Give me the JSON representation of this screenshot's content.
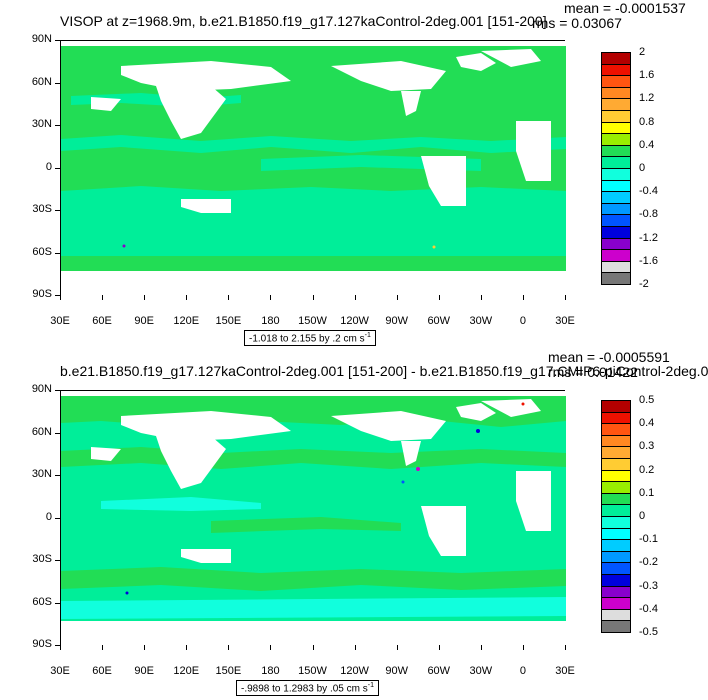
{
  "panels": [
    {
      "title": "VISOP at z=1968.9m, b.e21.B1850.f19_g17.127kaControl-2deg.001 [151-200]",
      "mean": "mean = -0.0001537",
      "rms": "rms = 0.03067",
      "range_text": "-1.018 to 2.155 by .2 cm s",
      "range_sup": "-1",
      "colorbar_labels": [
        "2",
        "1.6",
        "1.2",
        "0.8",
        "0.4",
        "0",
        "-0.4",
        "-0.8",
        "-1.2",
        "-1.6",
        "-2"
      ]
    },
    {
      "title": "b.e21.B1850.f19_g17.127kaControl-2deg.001 [151-200] - b.e21.B1850.f19_g17.CMIP6-piControl-2deg.0",
      "mean": "mean = -0.0005591",
      "rms": "rms = 0.01422",
      "range_text": "-.9898 to 1.2983 by .05 cm s",
      "range_sup": "-1",
      "colorbar_labels": [
        "0.5",
        "0.4",
        "0.3",
        "0.2",
        "0.1",
        "0",
        "-0.1",
        "-0.2",
        "-0.3",
        "-0.4",
        "-0.5"
      ]
    }
  ],
  "axes": {
    "y_ticks": [
      "90N",
      "60N",
      "30N",
      "0",
      "30S",
      "60S",
      "90S"
    ],
    "x_ticks": [
      "30E",
      "60E",
      "90E",
      "120E",
      "150E",
      "180",
      "150W",
      "120W",
      "90W",
      "60W",
      "30W",
      "0",
      "30E"
    ]
  },
  "colorbar_colors": [
    "#b30000",
    "#ee1100",
    "#ff5511",
    "#ff8822",
    "#ffaa33",
    "#ffcc33",
    "#ffff00",
    "#99ee00",
    "#22dd55",
    "#00ee99",
    "#11ffdd",
    "#00ffff",
    "#00ccff",
    "#0099ff",
    "#0055ff",
    "#0000dd",
    "#8800cc",
    "#cc00cc",
    "#dddddd",
    "#777777"
  ],
  "chart_data": [
    {
      "type": "heatmap",
      "title": "VISOP at z=1968.9m, b.e21.B1850.f19_g17.127kaControl-2deg.001 [151-200]",
      "xlabel": "",
      "ylabel": "",
      "x_range": [
        "30E",
        "30E"
      ],
      "y_range": [
        "90S",
        "90N"
      ],
      "color_levels": [
        2,
        1.6,
        1.2,
        0.8,
        0.4,
        0,
        -0.4,
        -0.8,
        -1.2,
        -1.6,
        -2
      ],
      "mean": -0.0001537,
      "rms": 0.03067,
      "data_min": -1.018,
      "data_max": 2.155,
      "contour_interval": 0.2,
      "units": "cm s-1"
    },
    {
      "type": "heatmap",
      "title": "b.e21.B1850.f19_g17.127kaControl-2deg.001 [151-200] - b.e21.B1850.f19_g17.CMIP6-piControl-2deg.0",
      "xlabel": "",
      "ylabel": "",
      "x_range": [
        "30E",
        "30E"
      ],
      "y_range": [
        "90S",
        "90N"
      ],
      "color_levels": [
        0.5,
        0.4,
        0.3,
        0.2,
        0.1,
        0,
        -0.1,
        -0.2,
        -0.3,
        -0.4,
        -0.5
      ],
      "mean": -0.0005591,
      "rms": 0.01422,
      "data_min": -0.9898,
      "data_max": 1.2983,
      "contour_interval": 0.05,
      "units": "cm s-1"
    }
  ]
}
